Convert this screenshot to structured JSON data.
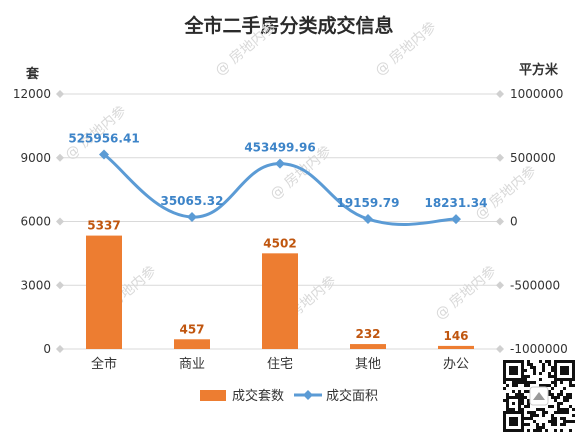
{
  "colors": {
    "bar": "#ed7d31",
    "line": "#5b9bd5",
    "grid": "#d9d9d9",
    "watermark": "#d9d9d9"
  },
  "watermark": {
    "text": "@ 房地内参"
  },
  "chart_data": {
    "type": "bar+line",
    "title": "全市二手房分类成交信息",
    "categories": [
      "全市",
      "商业",
      "住宅",
      "其他",
      "办公"
    ],
    "y_left": {
      "label": "套",
      "ylim": [
        0,
        12000
      ],
      "ticks": [
        0,
        3000,
        6000,
        9000,
        12000
      ],
      "tick_labels": [
        "0",
        "3000",
        "6000",
        "9000",
        "12000"
      ]
    },
    "y_right": {
      "label": "平方米",
      "ylim": [
        -1000000,
        1000000
      ],
      "ticks": [
        -1000000,
        -500000,
        0,
        500000,
        1000000
      ],
      "tick_labels": [
        "-1000000",
        "-500000",
        "0",
        "500000",
        "1000000"
      ]
    },
    "series": [
      {
        "name": "成交套数",
        "type": "bar",
        "axis": "left",
        "values": [
          5337,
          457,
          4502,
          232,
          146
        ],
        "labels": [
          "5337",
          "457",
          "4502",
          "232",
          "146"
        ]
      },
      {
        "name": "成交面积",
        "type": "line",
        "axis": "right",
        "values": [
          525956.41,
          35065.32,
          453499.96,
          19159.79,
          18231.34
        ],
        "labels": [
          "525956.41",
          "35065.32",
          "453499.96",
          "19159.79",
          "18231.34"
        ]
      }
    ],
    "grid": true,
    "legend_position": "bottom"
  }
}
